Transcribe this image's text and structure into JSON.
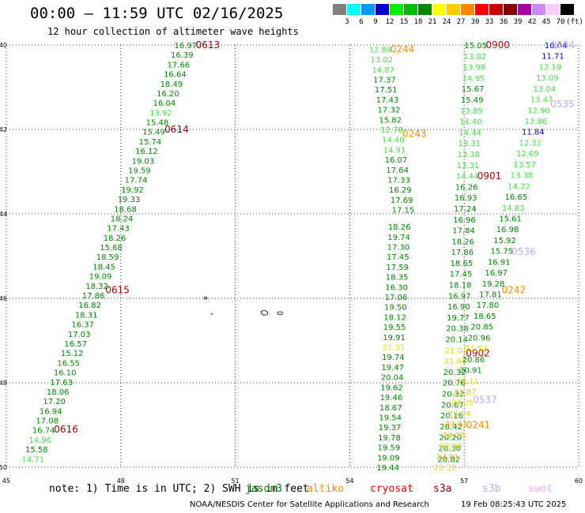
{
  "header": {
    "title": "00:00 – 11:59 UTC 02/16/2025",
    "subtitle": "12 hour collection of altimeter wave heights"
  },
  "legend": {
    "colors": [
      "#808080",
      "#00ffff",
      "#0099ff",
      "#0000cc",
      "#00ee00",
      "#00bb00",
      "#008800",
      "#ffff00",
      "#ffcc00",
      "#ff8800",
      "#ff0000",
      "#cc0000",
      "#880000",
      "#aa00aa",
      "#cc88ff",
      "#ffccff",
      "#000000"
    ],
    "labels": [
      "3",
      "6",
      "9",
      "12",
      "15",
      "18",
      "21",
      "24",
      "27",
      "30",
      "33",
      "36",
      "39",
      "42",
      "45",
      "70",
      "(ft)"
    ]
  },
  "map_data": {
    "lon_range": [
      45,
      60
    ],
    "lat_range": [
      -50,
      -40
    ],
    "lon_ticks": [
      "45",
      "48",
      "51",
      "54",
      "57",
      "60"
    ],
    "lat_ticks": [
      "-40",
      "-42",
      "-44",
      "-46",
      "-48",
      "-50"
    ],
    "tracks": [
      {
        "id": "T1",
        "lon": [
          49.7,
          45.7
        ],
        "lat": [
          -40.0,
          -49.8
        ],
        "values": [
          "16.97",
          "16.39",
          "17.66",
          "16.64",
          "18.49",
          "16.20",
          "16.04",
          "13.92",
          "15.48",
          "15.49",
          "15.74",
          "16.12",
          "19.03",
          "19.59",
          "17.74",
          "19.92",
          "19.33",
          "18.68",
          "18.24",
          "17.43",
          "18.26",
          "15.68",
          "18.59",
          "18.45",
          "19.09",
          "18.32",
          "17.86",
          "16.82",
          "18.31",
          "16.37",
          "17.03",
          "16.57",
          "15.12",
          "16.55",
          "16.10",
          "17.63",
          "18.06",
          "17.20",
          "16.94",
          "17.08",
          "16.74",
          "14.96",
          "15.58",
          "14.71"
        ],
        "pass_labels": [
          {
            "text": "0613",
            "lat": -40.0,
            "color": "#990000"
          },
          {
            "text": "0614",
            "lat": -42.0,
            "color": "#990000"
          },
          {
            "text": "0615",
            "lat": -45.8,
            "color": "#990000"
          },
          {
            "text": "0616",
            "lat": -49.1,
            "color": "#990000"
          }
        ]
      },
      {
        "id": "T2",
        "lon": [
          54.8,
          55.4
        ],
        "lat": [
          -40.1,
          -43.9
        ],
        "values": [
          "12.88",
          "13.02",
          "14.87",
          "17.37",
          "17.51",
          "17.43",
          "17.32",
          "15.82",
          "12.78",
          "14.40",
          "14.91",
          "16.07",
          "17.64",
          "17.33",
          "16.29",
          "17.69",
          "17.15"
        ],
        "pass_labels": [
          {
            "text": "0244",
            "lat": -40.1,
            "color": "#ff8800"
          },
          {
            "text": "0243",
            "lat": -42.1,
            "color": "#ff8800"
          }
        ]
      },
      {
        "id": "T3",
        "lon": [
          55.3,
          55.0
        ],
        "lat": [
          -44.3,
          -50.0
        ],
        "values": [
          "18.26",
          "19.74",
          "17.30",
          "17.45",
          "17.59",
          "18.35",
          "16.30",
          "17.06",
          "19.50",
          "18.12",
          "19.55",
          "19.91",
          "21.31",
          "19.74",
          "19.47",
          "20.04",
          "19.62",
          "19.46",
          "18.67",
          "19.54",
          "19.37",
          "19.78",
          "19.59",
          "19.09",
          "19.44"
        ],
        "pass_labels": []
      },
      {
        "id": "T4",
        "lon": [
          57.3,
          56.6
        ],
        "lat": [
          -40.0,
          -49.8
        ],
        "values": [
          "15.05",
          "13.82",
          "13.98",
          "14.95",
          "15.67",
          "15.49",
          "13.89",
          "14.40",
          "14.44",
          "13.31",
          "13.38",
          "13.31",
          "14.44",
          "16.26",
          "16.93",
          "17.24",
          "16.96",
          "17.84",
          "18.26",
          "17.86",
          "18.65",
          "17.45",
          "18.18",
          "16.97",
          "16.90",
          "19.77",
          "20.38",
          "20.14",
          "21.01",
          "21.69",
          "20.32",
          "20.76",
          "20.32",
          "20.67",
          "20.16",
          "20.42",
          "20.20",
          "20.30",
          "20.82"
        ],
        "pass_labels": [
          {
            "text": "0900",
            "lat": -40.0,
            "color": "#cc0000"
          },
          {
            "text": "0901",
            "lat": -43.1,
            "color": "#cc0000"
          },
          {
            "text": "0902",
            "lat": -47.3,
            "color": "#cc0000"
          }
        ]
      },
      {
        "id": "T5",
        "lon": [
          59.4,
          56.5
        ],
        "lat": [
          -40.0,
          -50.0
        ],
        "values": [
          "10.04",
          "11.71",
          "12.19",
          "13.09",
          "13.04",
          "13.47",
          "12.90",
          "13.86",
          "11.84",
          "12.32",
          "12.69",
          "13.57",
          "13.38",
          "14.22",
          "16.65",
          "14.83",
          "15.61",
          "16.98",
          "15.92",
          "15.75",
          "16.91",
          "16.97",
          "19.28",
          "17.81",
          "17.80",
          "18.65",
          "20.85",
          "20.96",
          "21.53",
          "20.86",
          "20.91",
          "22.11",
          "22.87",
          "23.05",
          "23.94",
          "24.61",
          "24.20",
          "22.90",
          "24.01",
          "22.32"
        ],
        "pass_labels": [
          {
            "text": "0534",
            "lat": -40.0,
            "color": "#bbaaee"
          },
          {
            "text": "0535",
            "lat": -41.4,
            "color": "#bbaaee"
          },
          {
            "text": "0536",
            "lat": -44.9,
            "color": "#bbaaee"
          },
          {
            "text": "0242",
            "lat": -45.8,
            "color": "#ff8800"
          },
          {
            "text": "0537",
            "lat": -48.4,
            "color": "#bbaaee"
          },
          {
            "text": "0241",
            "lat": -49.0,
            "color": "#ff8800"
          }
        ]
      }
    ]
  },
  "footer": {
    "note": "note: 1) Time is in UTC; 2) SWH is in feet",
    "missions": [
      {
        "name": "jason3",
        "color": "#008800"
      },
      {
        "name": "altiko",
        "color": "#ff8800"
      },
      {
        "name": "cryosat",
        "color": "#ff0000"
      },
      {
        "name": "s3a",
        "color": "#990000"
      },
      {
        "name": "s3b",
        "color": "#bbaaee"
      },
      {
        "name": "swot",
        "color": "#ffaaee"
      }
    ],
    "credit": "NOAA/NESDIS Center for Satellite Applications and Research",
    "timestamp": "19 Feb 08:25:43 UTC 2025"
  }
}
